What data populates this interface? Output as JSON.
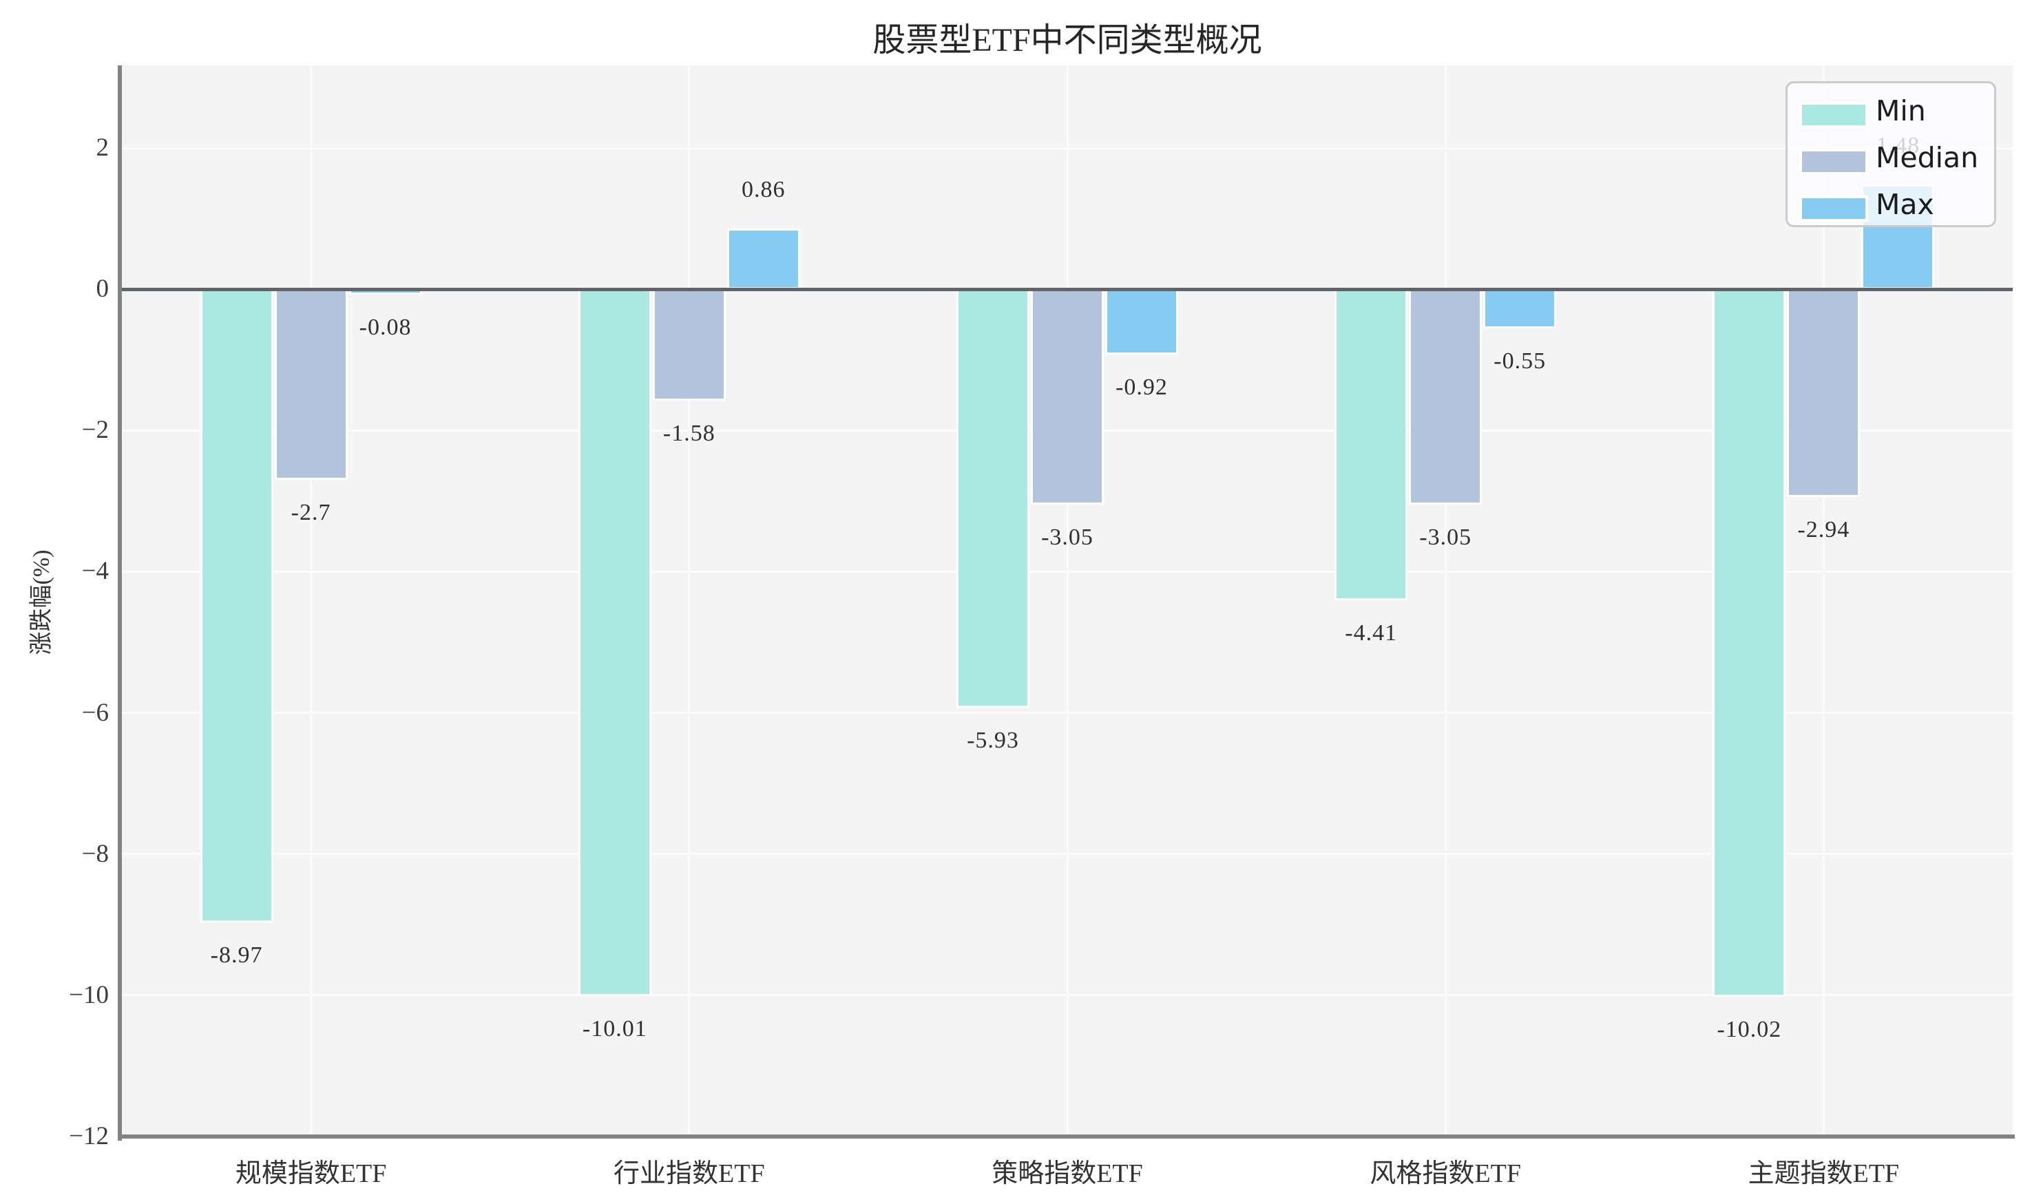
{
  "chart_data": {
    "type": "bar",
    "title": "股票型ETF中不同类型概况",
    "ylabel": "涨跌幅(%)",
    "xlabel": "",
    "categories": [
      "规模指数ETF",
      "行业指数ETF",
      "策略指数ETF",
      "风格指数ETF",
      "主题指数ETF"
    ],
    "series": [
      {
        "name": "Min",
        "color": "#a9e9e2",
        "values": [
          -8.97,
          -10.01,
          -5.93,
          -4.41,
          -10.02
        ],
        "labels": [
          "-8.97",
          "-10.01",
          "-5.93",
          "-4.41",
          "-10.02"
        ]
      },
      {
        "name": "Median",
        "color": "#b2c3dc",
        "values": [
          -2.7,
          -1.58,
          -3.05,
          -3.05,
          -2.94
        ],
        "labels": [
          "-2.7",
          "-1.58",
          "-3.05",
          "-3.05",
          "-2.94"
        ]
      },
      {
        "name": "Max",
        "color": "#86ccf2",
        "values": [
          -0.08,
          0.86,
          -0.92,
          -0.55,
          1.48
        ],
        "labels": [
          "-0.08",
          "0.86",
          "-0.92",
          "-0.55",
          "1.48"
        ]
      }
    ],
    "yticks": [
      2,
      0,
      -2,
      -4,
      -6,
      -8,
      -10,
      -12
    ],
    "ytick_labels": [
      "2",
      "0",
      "−2",
      "−4",
      "−6",
      "−8",
      "−10",
      "−12"
    ],
    "ylim": [
      -12,
      3.17
    ],
    "grid": true,
    "legend_position": "upper right",
    "plot_background": "#f4f4f4",
    "zero_line_color": "#606368",
    "spine_color": "#828282"
  }
}
